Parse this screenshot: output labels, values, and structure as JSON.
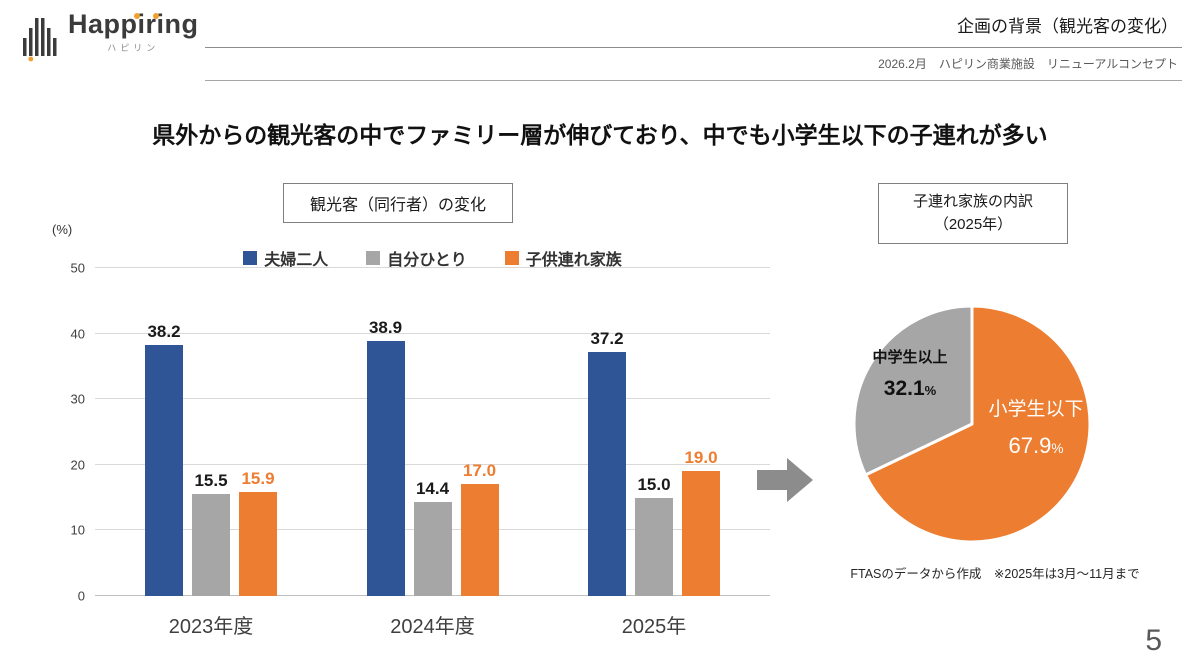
{
  "header": {
    "logo_text": "Happiring",
    "logo_sub": "ハピリン",
    "title": "企画の背景（観光客の変化）",
    "subtitle": "2026.2月　ハピリン商業施設　リニューアルコンセプト"
  },
  "main_title": "県外からの観光客の中でファミリー層が伸びており、中でも小学生以下の子連れが多い",
  "bar_section": {
    "title": "観光客（同行者）の変化",
    "unit_label": "(%)"
  },
  "pie_section": {
    "title_line1": "子連れ家族の内訳",
    "title_line2": "（2025年）",
    "percent_sign": "%",
    "footnote": "FTASのデータから作成　※2025年は3月～11月まで"
  },
  "page_number": "5",
  "colors": {
    "blue": "#2f5597",
    "gray": "#a6a6a6",
    "orange": "#ed7d31",
    "arrow_gray": "#8c8c8c"
  },
  "chart_data": [
    {
      "type": "bar",
      "title": "観光客（同行者）の変化",
      "categories": [
        "2023年度",
        "2024年度",
        "2025年"
      ],
      "series": [
        {
          "name": "夫婦二人",
          "color": "#2f5597",
          "label_color": "#1a1a1a",
          "values": [
            38.2,
            38.9,
            37.2
          ]
        },
        {
          "name": "自分ひとり",
          "color": "#a6a6a6",
          "label_color": "#1a1a1a",
          "values": [
            15.5,
            14.4,
            15.0
          ]
        },
        {
          "name": "子供連れ家族",
          "color": "#ed7d31",
          "label_color": "#ed7d31",
          "values": [
            15.9,
            17.0,
            19.0
          ]
        }
      ],
      "xlabel": "",
      "ylabel": "(%)",
      "ylim": [
        0,
        50
      ],
      "yticks": [
        0,
        10,
        20,
        30,
        40,
        50
      ],
      "grid": true,
      "legend_position": "top"
    },
    {
      "type": "pie",
      "title": "子連れ家族の内訳（2025年）",
      "slices": [
        {
          "label": "小学生以下",
          "value": 67.9,
          "color": "#ed7d31"
        },
        {
          "label": "中学生以上",
          "value": 32.1,
          "color": "#a6a6a6"
        }
      ],
      "start_angle_deg": 0,
      "direction": "clockwise"
    }
  ]
}
